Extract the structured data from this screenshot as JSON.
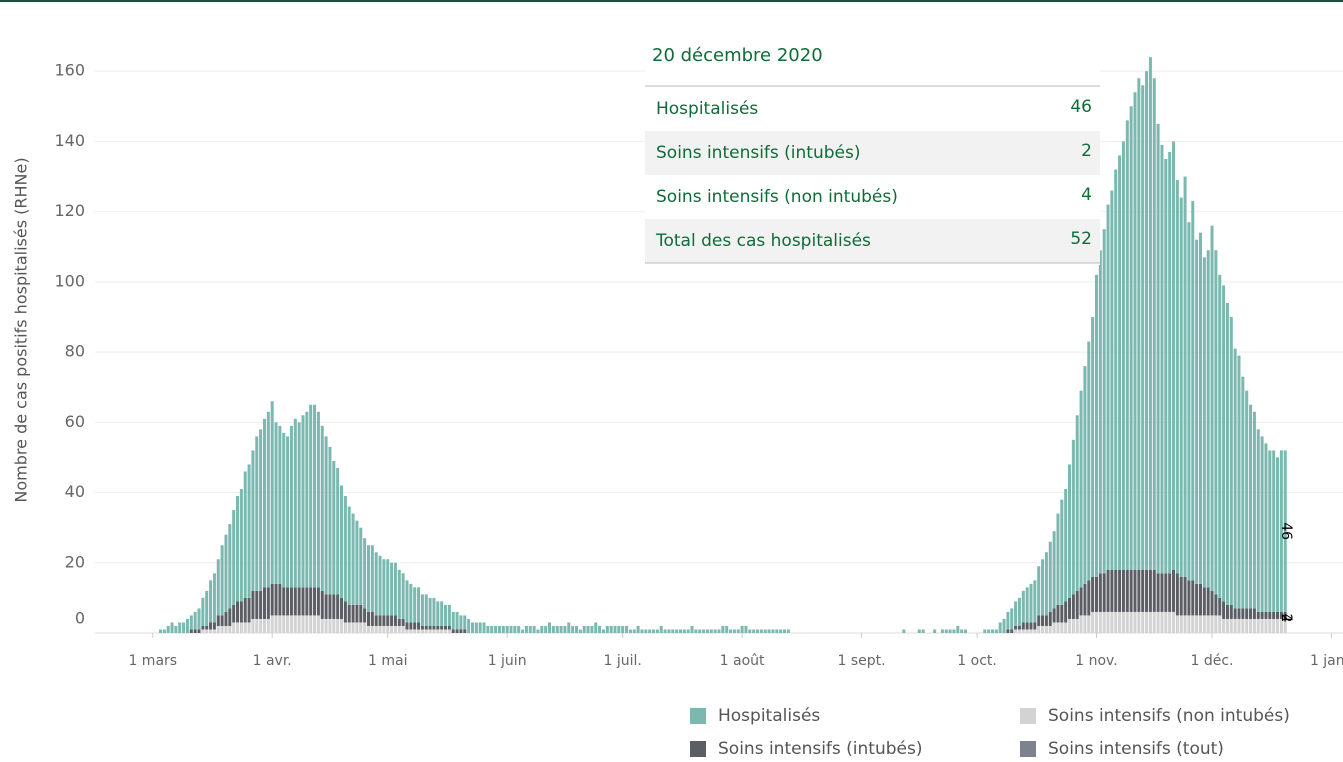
{
  "chart_data": {
    "type": "stacked_bar",
    "y_axis_label": "Nombre de cas positifs hospitalisés (RHNe)",
    "ylim": [
      0,
      176
    ],
    "yticks": [
      0,
      20,
      40,
      60,
      80,
      100,
      120,
      140,
      160
    ],
    "xlim": [
      "02-15",
      "01-04"
    ],
    "xticks": [
      {
        "value": "03-01",
        "label": "1 mars"
      },
      {
        "value": "04-01",
        "label": "1 avr."
      },
      {
        "value": "05-01",
        "label": "1 mai"
      },
      {
        "value": "06-01",
        "label": "1 juin"
      },
      {
        "value": "07-01",
        "label": "1 juil."
      },
      {
        "value": "08-01",
        "label": "1 août"
      },
      {
        "value": "09-01",
        "label": "1 sept."
      },
      {
        "value": "10-01",
        "label": "1 oct."
      },
      {
        "value": "11-01",
        "label": "1 nov."
      },
      {
        "value": "12-01",
        "label": "1 déc."
      },
      {
        "value": "01-01",
        "label": "1 janv"
      }
    ],
    "grid": true,
    "x": [
      "03-01",
      "03-02",
      "03-03",
      "03-04",
      "03-05",
      "03-06",
      "03-07",
      "03-08",
      "03-09",
      "03-10",
      "03-11",
      "03-12",
      "03-13",
      "03-14",
      "03-15",
      "03-16",
      "03-17",
      "03-18",
      "03-19",
      "03-20",
      "03-21",
      "03-22",
      "03-23",
      "03-24",
      "03-25",
      "03-26",
      "03-27",
      "03-28",
      "03-29",
      "03-30",
      "03-31",
      "04-01",
      "04-02",
      "04-03",
      "04-04",
      "04-05",
      "04-06",
      "04-07",
      "04-08",
      "04-09",
      "04-10",
      "04-11",
      "04-12",
      "04-13",
      "04-14",
      "04-15",
      "04-16",
      "04-17",
      "04-18",
      "04-19",
      "04-20",
      "04-21",
      "04-22",
      "04-23",
      "04-24",
      "04-25",
      "04-26",
      "04-27",
      "04-28",
      "04-29",
      "04-30",
      "05-01",
      "05-02",
      "05-03",
      "05-04",
      "05-05",
      "05-06",
      "05-07",
      "05-08",
      "05-09",
      "05-10",
      "05-11",
      "05-12",
      "05-13",
      "05-14",
      "05-15",
      "05-16",
      "05-17",
      "05-18",
      "05-19",
      "05-20",
      "05-21",
      "05-22",
      "05-23",
      "05-24",
      "05-25",
      "05-26",
      "05-27",
      "05-28",
      "05-29",
      "05-30",
      "05-31",
      "06-01",
      "06-02",
      "06-03",
      "06-04",
      "06-05",
      "06-06",
      "06-07",
      "06-08",
      "06-09",
      "06-10",
      "06-11",
      "06-12",
      "06-13",
      "06-14",
      "06-15",
      "06-16",
      "06-17",
      "06-18",
      "06-19",
      "06-20",
      "06-21",
      "06-22",
      "06-23",
      "06-24",
      "06-25",
      "06-26",
      "06-27",
      "06-28",
      "06-29",
      "06-30",
      "07-01",
      "07-02",
      "07-03",
      "07-04",
      "07-05",
      "07-06",
      "07-07",
      "07-08",
      "07-09",
      "07-10",
      "07-11",
      "07-12",
      "07-13",
      "07-14",
      "07-15",
      "07-16",
      "07-17",
      "07-18",
      "07-19",
      "07-20",
      "07-21",
      "07-22",
      "07-23",
      "07-24",
      "07-25",
      "07-26",
      "07-27",
      "07-28",
      "07-29",
      "07-30",
      "07-31",
      "08-01",
      "08-02",
      "08-03",
      "08-04",
      "08-05",
      "08-06",
      "08-07",
      "08-08",
      "08-09",
      "08-10",
      "08-11",
      "08-12",
      "08-13",
      "08-14",
      "08-15",
      "08-16",
      "08-17",
      "08-18",
      "08-19",
      "08-20",
      "08-21",
      "08-22",
      "08-23",
      "08-24",
      "08-25",
      "08-26",
      "08-27",
      "08-28",
      "08-29",
      "08-30",
      "08-31",
      "09-01",
      "09-02",
      "09-03",
      "09-04",
      "09-05",
      "09-06",
      "09-07",
      "09-08",
      "09-09",
      "09-10",
      "09-11",
      "09-12",
      "09-13",
      "09-14",
      "09-15",
      "09-16",
      "09-17",
      "09-18",
      "09-19",
      "09-20",
      "09-21",
      "09-22",
      "09-23",
      "09-24",
      "09-25",
      "09-26",
      "09-27",
      "09-28",
      "09-29",
      "09-30",
      "10-01",
      "10-02",
      "10-03",
      "10-04",
      "10-05",
      "10-06",
      "10-07",
      "10-08",
      "10-09",
      "10-10",
      "10-11",
      "10-12",
      "10-13",
      "10-14",
      "10-15",
      "10-16",
      "10-17",
      "10-18",
      "10-19",
      "10-20",
      "10-21",
      "10-22",
      "10-23",
      "10-24",
      "10-25",
      "10-26",
      "10-27",
      "10-28",
      "10-29",
      "10-30",
      "10-31",
      "11-01",
      "11-02",
      "11-03",
      "11-04",
      "11-05",
      "11-06",
      "11-07",
      "11-08",
      "11-09",
      "11-10",
      "11-11",
      "11-12",
      "11-13",
      "11-14",
      "11-15",
      "11-16",
      "11-17",
      "11-18",
      "11-19",
      "11-20",
      "11-21",
      "11-22",
      "11-23",
      "11-24",
      "11-25",
      "11-26",
      "11-27",
      "11-28",
      "11-29",
      "11-30",
      "12-01",
      "12-02",
      "12-03",
      "12-04",
      "12-05",
      "12-06",
      "12-07",
      "12-08",
      "12-09",
      "12-10",
      "12-11",
      "12-12",
      "12-13",
      "12-14",
      "12-15",
      "12-16",
      "12-17",
      "12-18",
      "12-19",
      "12-20"
    ],
    "series": [
      {
        "name": "Hospitalisés",
        "color": "#7bb8b0",
        "values": [
          0,
          0,
          1,
          1,
          2,
          3,
          2,
          3,
          3,
          4,
          4,
          5,
          6,
          8,
          10,
          12,
          14,
          16,
          20,
          22,
          24,
          27,
          30,
          32,
          36,
          38,
          40,
          44,
          46,
          48,
          50,
          52,
          46,
          45,
          44,
          43,
          46,
          48,
          47,
          49,
          50,
          52,
          52,
          50,
          47,
          45,
          42,
          38,
          36,
          32,
          30,
          28,
          26,
          24,
          22,
          20,
          19,
          19,
          18,
          17,
          16,
          16,
          15,
          15,
          14,
          13,
          12,
          11,
          10,
          10,
          9,
          9,
          8,
          8,
          7,
          7,
          6,
          6,
          5,
          5,
          4,
          4,
          4,
          3,
          3,
          3,
          3,
          2,
          2,
          2,
          2,
          2,
          2,
          2,
          2,
          2,
          1,
          2,
          2,
          2,
          1,
          2,
          2,
          3,
          2,
          2,
          2,
          2,
          3,
          2,
          2,
          1,
          2,
          2,
          2,
          3,
          2,
          1,
          2,
          2,
          2,
          2,
          2,
          2,
          1,
          1,
          2,
          1,
          1,
          1,
          1,
          1,
          2,
          1,
          1,
          1,
          1,
          1,
          1,
          1,
          2,
          1,
          1,
          1,
          1,
          1,
          1,
          1,
          2,
          2,
          1,
          1,
          1,
          2,
          2,
          1,
          1,
          1,
          1,
          1,
          1,
          1,
          1,
          1,
          1,
          1,
          0,
          0,
          0,
          0,
          0,
          0,
          0,
          0,
          0,
          0,
          0,
          0,
          0,
          0,
          0,
          0,
          0,
          0,
          0,
          0,
          0,
          0,
          0,
          0,
          0,
          0,
          0,
          0,
          0,
          1,
          0,
          0,
          0,
          1,
          1,
          0,
          0,
          1,
          0,
          1,
          1,
          1,
          1,
          2,
          1,
          1,
          0,
          0,
          0,
          0,
          1,
          1,
          1,
          1,
          3,
          4,
          5,
          6,
          7,
          8,
          9,
          10,
          11,
          12,
          14,
          16,
          18,
          20,
          22,
          26,
          30,
          32,
          38,
          44,
          50,
          56,
          62,
          68,
          74,
          86,
          92,
          98,
          104,
          108,
          114,
          118,
          122,
          128,
          132,
          136,
          140,
          138,
          142,
          146,
          140,
          128,
          122,
          118,
          120,
          122,
          112,
          108,
          114,
          102,
          108,
          98,
          100,
          94,
          96,
          104,
          98,
          92,
          90,
          86,
          82,
          74,
          72,
          66,
          62,
          58,
          56,
          52,
          50,
          48,
          46,
          46,
          44,
          46,
          46
        ]
      },
      {
        "name": "Soins intensifs (intubés)",
        "color": "#5b5e65",
        "values": [
          0,
          0,
          0,
          0,
          0,
          0,
          0,
          0,
          0,
          0,
          1,
          1,
          1,
          1,
          1,
          2,
          2,
          3,
          3,
          4,
          5,
          5,
          6,
          6,
          7,
          7,
          8,
          8,
          8,
          9,
          9,
          9,
          9,
          9,
          8,
          8,
          8,
          8,
          8,
          8,
          8,
          8,
          8,
          8,
          8,
          7,
          7,
          7,
          7,
          6,
          6,
          5,
          5,
          5,
          5,
          4,
          4,
          4,
          3,
          3,
          3,
          3,
          3,
          3,
          2,
          2,
          2,
          2,
          2,
          2,
          1,
          1,
          1,
          1,
          1,
          1,
          1,
          1,
          1,
          1,
          1,
          1,
          0,
          0,
          0,
          0,
          0,
          0,
          0,
          0,
          0,
          0,
          0,
          0,
          0,
          0,
          0,
          0,
          0,
          0,
          0,
          0,
          0,
          0,
          0,
          0,
          0,
          0,
          0,
          0,
          0,
          0,
          0,
          0,
          0,
          0,
          0,
          0,
          0,
          0,
          0,
          0,
          0,
          0,
          0,
          0,
          0,
          0,
          0,
          0,
          0,
          0,
          0,
          0,
          0,
          0,
          0,
          0,
          0,
          0,
          0,
          0,
          0,
          0,
          0,
          0,
          0,
          0,
          0,
          0,
          0,
          0,
          0,
          0,
          0,
          0,
          0,
          0,
          0,
          0,
          0,
          0,
          0,
          0,
          0,
          0,
          0,
          0,
          0,
          0,
          0,
          0,
          0,
          0,
          0,
          0,
          0,
          0,
          0,
          0,
          0,
          0,
          0,
          0,
          0,
          0,
          0,
          0,
          0,
          0,
          0,
          0,
          0,
          0,
          0,
          0,
          0,
          0,
          0,
          0,
          0,
          0,
          0,
          0,
          0,
          0,
          0,
          0,
          0,
          0,
          0,
          0,
          0,
          0,
          0,
          0,
          0,
          0,
          0,
          0,
          0,
          0,
          1,
          1,
          1,
          1,
          2,
          2,
          2,
          2,
          3,
          3,
          3,
          4,
          4,
          5,
          5,
          6,
          6,
          7,
          8,
          8,
          9,
          10,
          10,
          10,
          11,
          11,
          12,
          12,
          12,
          12,
          12,
          12,
          12,
          12,
          12,
          12,
          12,
          12,
          12,
          11,
          11,
          11,
          11,
          12,
          12,
          11,
          11,
          10,
          10,
          9,
          9,
          8,
          8,
          7,
          6,
          5,
          5,
          4,
          4,
          3,
          3,
          3,
          3,
          3,
          3,
          2,
          2,
          2,
          2,
          2,
          2,
          2,
          2
        ]
      },
      {
        "name": "Soins intensifs (non intubés)",
        "color": "#d3d3d3",
        "values": [
          0,
          0,
          0,
          0,
          0,
          0,
          0,
          0,
          0,
          0,
          0,
          0,
          0,
          1,
          1,
          1,
          1,
          2,
          2,
          2,
          2,
          3,
          3,
          3,
          3,
          3,
          4,
          4,
          4,
          4,
          4,
          5,
          5,
          5,
          5,
          5,
          5,
          5,
          5,
          5,
          5,
          5,
          5,
          5,
          4,
          4,
          4,
          4,
          4,
          4,
          3,
          3,
          3,
          3,
          3,
          3,
          2,
          2,
          2,
          2,
          2,
          2,
          2,
          2,
          2,
          2,
          1,
          1,
          1,
          1,
          1,
          1,
          1,
          1,
          1,
          1,
          1,
          1,
          0,
          0,
          0,
          0,
          0,
          0,
          0,
          0,
          0,
          0,
          0,
          0,
          0,
          0,
          0,
          0,
          0,
          0,
          0,
          0,
          0,
          0,
          0,
          0,
          0,
          0,
          0,
          0,
          0,
          0,
          0,
          0,
          0,
          0,
          0,
          0,
          0,
          0,
          0,
          0,
          0,
          0,
          0,
          0,
          0,
          0,
          0,
          0,
          0,
          0,
          0,
          0,
          0,
          0,
          0,
          0,
          0,
          0,
          0,
          0,
          0,
          0,
          0,
          0,
          0,
          0,
          0,
          0,
          0,
          0,
          0,
          0,
          0,
          0,
          0,
          0,
          0,
          0,
          0,
          0,
          0,
          0,
          0,
          0,
          0,
          0,
          0,
          0,
          0,
          0,
          0,
          0,
          0,
          0,
          0,
          0,
          0,
          0,
          0,
          0,
          0,
          0,
          0,
          0,
          0,
          0,
          0,
          0,
          0,
          0,
          0,
          0,
          0,
          0,
          0,
          0,
          0,
          0,
          0,
          0,
          0,
          0,
          0,
          0,
          0,
          0,
          0,
          0,
          0,
          0,
          0,
          0,
          0,
          0,
          0,
          0,
          0,
          0,
          0,
          0,
          0,
          0,
          0,
          0,
          0,
          0,
          1,
          1,
          1,
          1,
          1,
          1,
          2,
          2,
          2,
          2,
          3,
          3,
          3,
          3,
          4,
          4,
          4,
          5,
          5,
          5,
          6,
          6,
          6,
          6,
          6,
          6,
          6,
          6,
          6,
          6,
          6,
          6,
          6,
          6,
          6,
          6,
          6,
          6,
          6,
          6,
          6,
          6,
          5,
          5,
          5,
          5,
          5,
          5,
          5,
          5,
          5,
          5,
          5,
          5,
          4,
          4,
          4,
          4,
          4,
          4,
          4,
          4,
          4,
          4,
          4,
          4,
          4,
          4,
          4,
          4,
          4
        ]
      },
      {
        "name": "Soins intensifs (tout)",
        "color": "#7b838f"
      }
    ],
    "tooltip": {
      "title": "20 décembre 2020",
      "rows": [
        {
          "label": "Hospitalisés",
          "value": 46
        },
        {
          "label": "Soins intensifs (intubés)",
          "value": 2
        },
        {
          "label": "Soins intensifs (non intubés)",
          "value": 4
        },
        {
          "label": "Total des cas hospitalisés",
          "value": 52
        }
      ]
    }
  }
}
